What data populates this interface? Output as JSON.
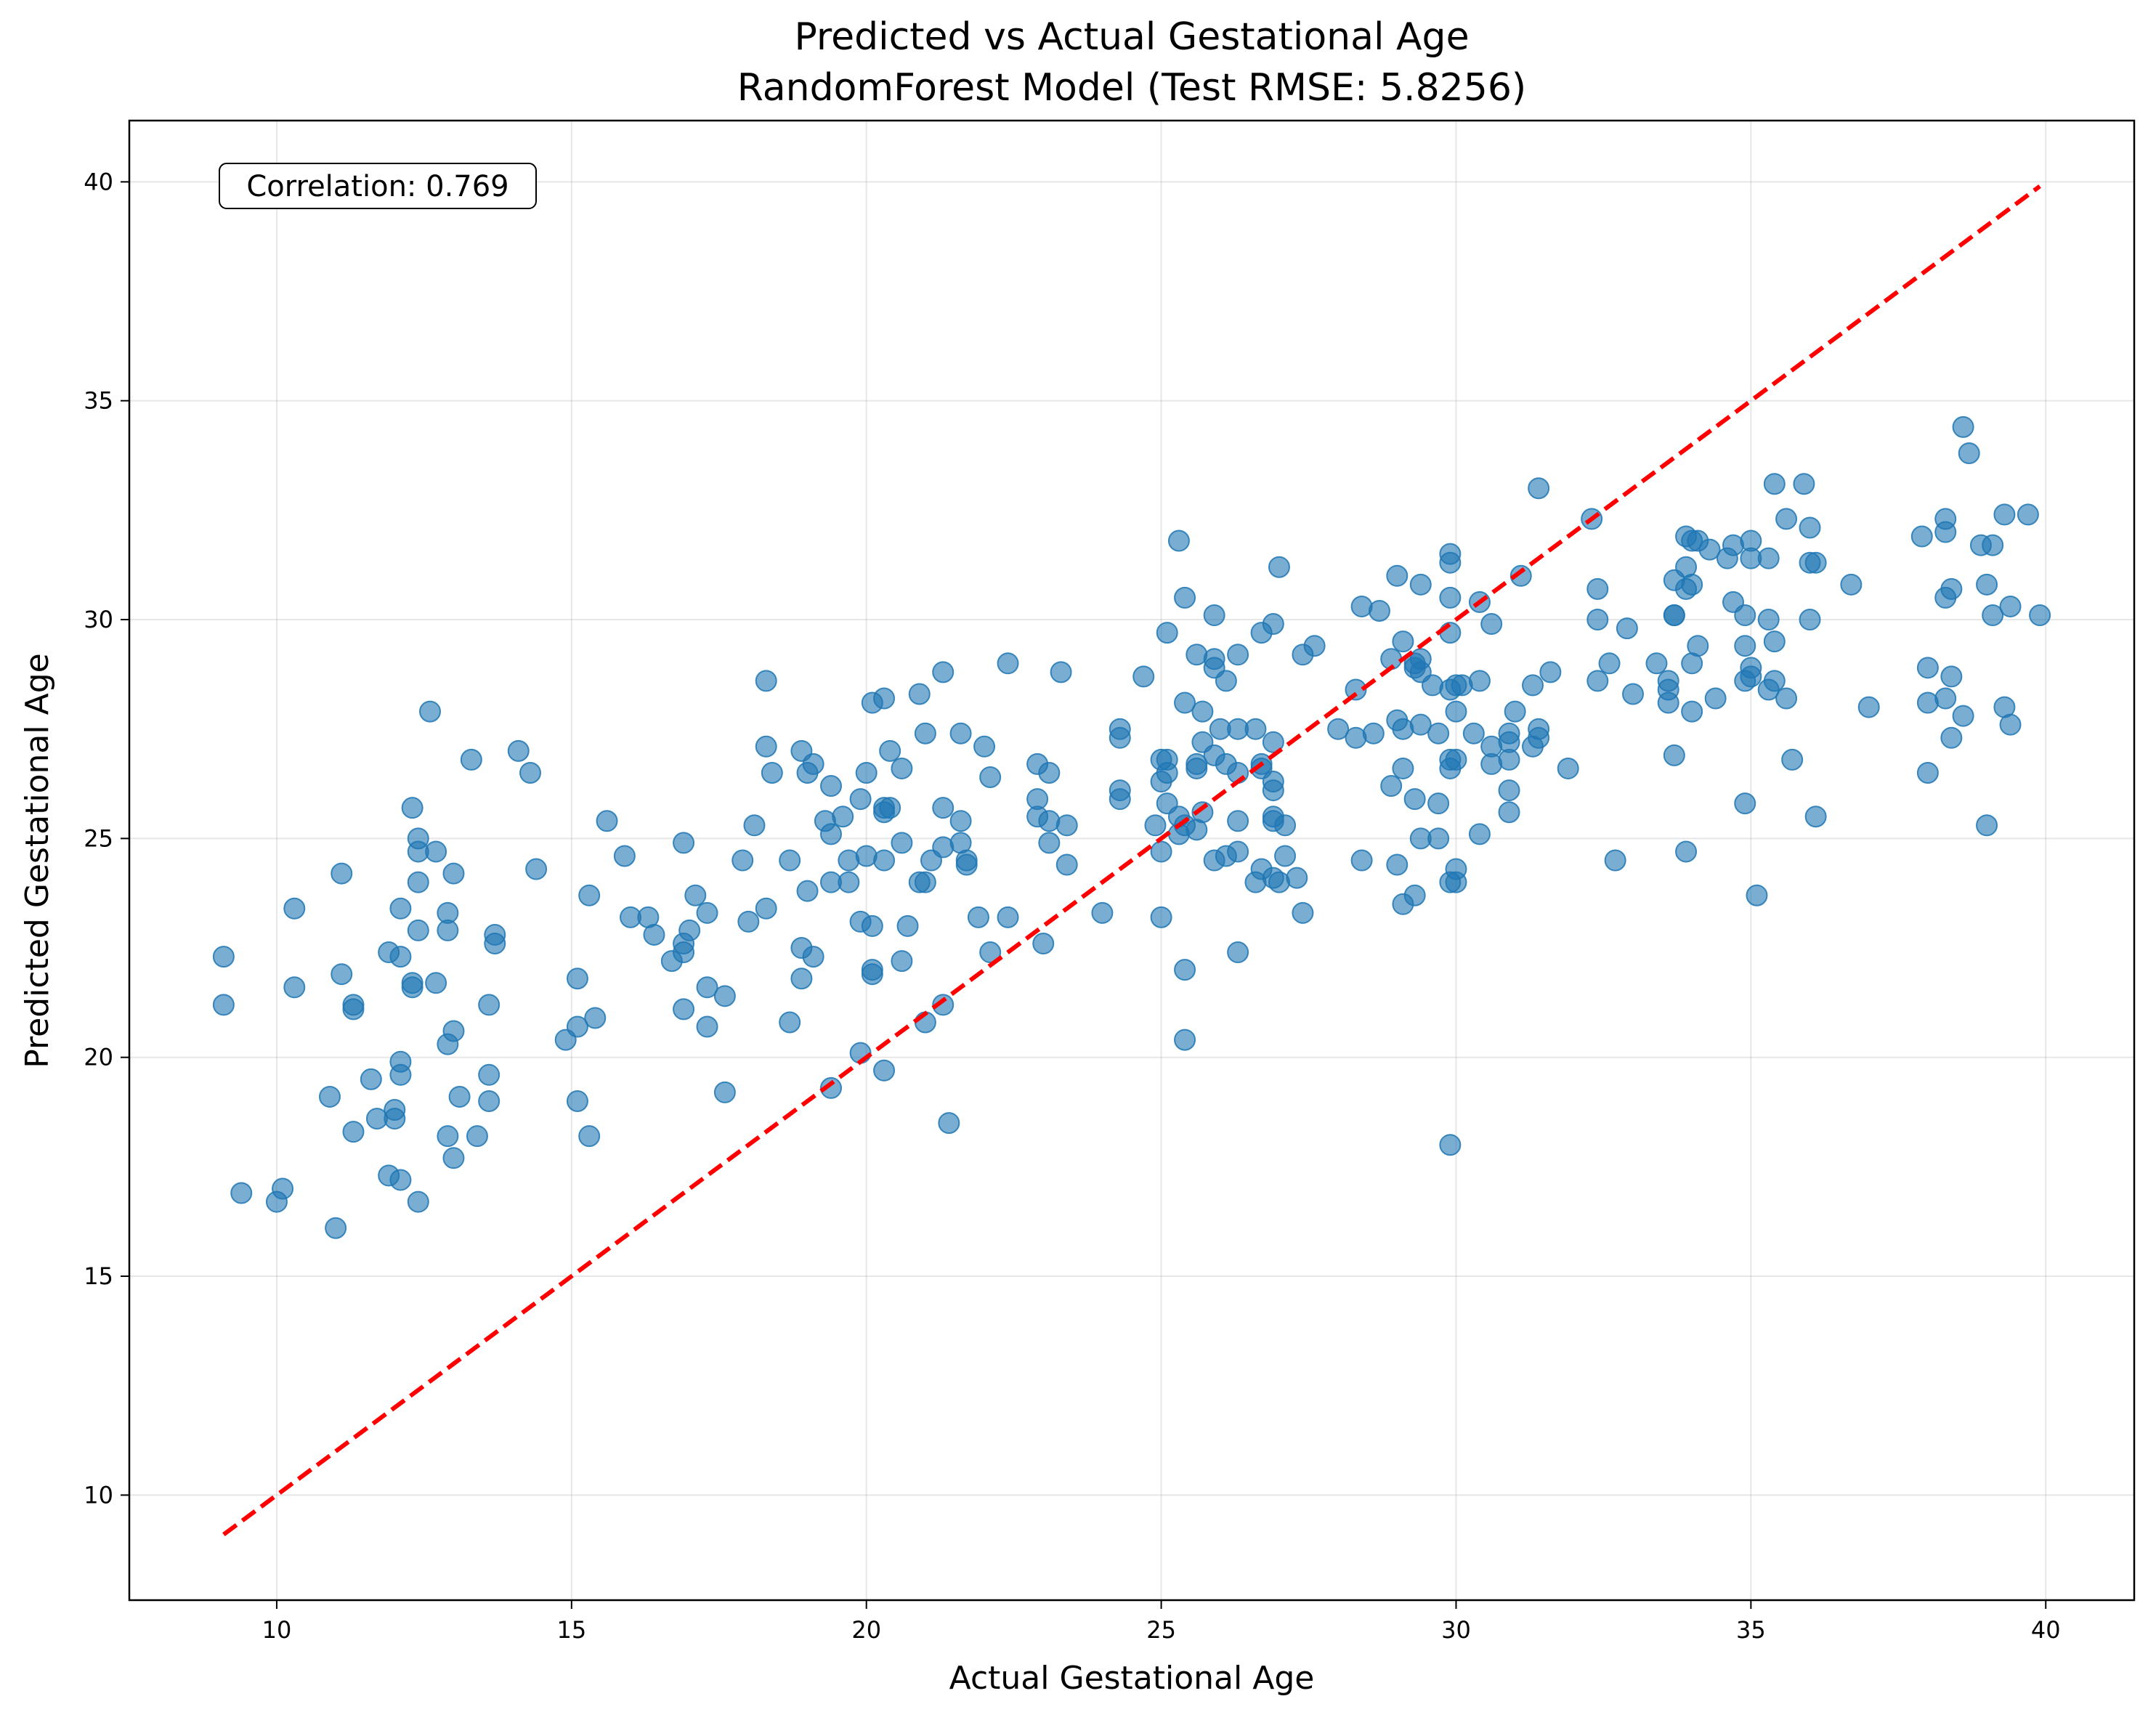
{
  "chart_data": {
    "type": "scatter",
    "title": "Predicted vs Actual Gestational Age",
    "subtitle": "RandomForest Model (Test RMSE: 5.8256)",
    "xlabel": "Actual Gestational Age",
    "ylabel": "Predicted Gestational Age",
    "xlim": [
      7.5,
      41.5
    ],
    "ylim": [
      7.6,
      41.4
    ],
    "xticks": [
      10,
      15,
      20,
      25,
      30,
      35,
      40
    ],
    "yticks": [
      10,
      15,
      20,
      25,
      30,
      35,
      40
    ],
    "grid": true,
    "annotation": "Correlation: 0.769",
    "colors": {
      "points": "#1f77b4",
      "reference_line": "#ff0000"
    },
    "reference_line": {
      "style": "dashed",
      "x": [
        9.1,
        39.9
      ],
      "y": [
        9.1,
        39.9
      ]
    },
    "points": [
      [
        9.1,
        22.3
      ],
      [
        9.1,
        21.2
      ],
      [
        9.4,
        16.9
      ],
      [
        10.0,
        16.7
      ],
      [
        10.1,
        17.0
      ],
      [
        10.3,
        23.4
      ],
      [
        10.3,
        21.6
      ],
      [
        10.9,
        19.1
      ],
      [
        11.0,
        16.1
      ],
      [
        11.1,
        24.2
      ],
      [
        11.1,
        21.9
      ],
      [
        11.3,
        21.2
      ],
      [
        11.3,
        21.1
      ],
      [
        11.3,
        18.3
      ],
      [
        11.6,
        19.5
      ],
      [
        11.7,
        18.6
      ],
      [
        11.9,
        22.4
      ],
      [
        11.9,
        17.3
      ],
      [
        12.0,
        18.8
      ],
      [
        12.0,
        18.6
      ],
      [
        12.1,
        23.4
      ],
      [
        12.1,
        22.3
      ],
      [
        12.1,
        19.9
      ],
      [
        12.1,
        19.6
      ],
      [
        12.1,
        17.2
      ],
      [
        12.3,
        25.7
      ],
      [
        12.3,
        21.7
      ],
      [
        12.3,
        21.6
      ],
      [
        12.4,
        25.0
      ],
      [
        12.4,
        24.7
      ],
      [
        12.4,
        24.0
      ],
      [
        12.4,
        22.9
      ],
      [
        12.4,
        16.7
      ],
      [
        12.6,
        27.9
      ],
      [
        12.7,
        24.7
      ],
      [
        12.7,
        21.7
      ],
      [
        12.9,
        23.3
      ],
      [
        12.9,
        22.9
      ],
      [
        12.9,
        20.3
      ],
      [
        12.9,
        18.2
      ],
      [
        13.0,
        24.2
      ],
      [
        13.0,
        20.6
      ],
      [
        13.0,
        17.7
      ],
      [
        13.1,
        19.1
      ],
      [
        13.3,
        26.8
      ],
      [
        13.4,
        18.2
      ],
      [
        13.6,
        21.2
      ],
      [
        13.6,
        19.6
      ],
      [
        13.6,
        19.0
      ],
      [
        13.7,
        22.8
      ],
      [
        13.7,
        22.6
      ],
      [
        14.1,
        27.0
      ],
      [
        14.3,
        26.5
      ],
      [
        14.4,
        24.3
      ],
      [
        14.9,
        20.4
      ],
      [
        15.1,
        21.8
      ],
      [
        15.1,
        20.7
      ],
      [
        15.1,
        19.0
      ],
      [
        15.3,
        23.7
      ],
      [
        15.3,
        18.2
      ],
      [
        15.4,
        20.9
      ],
      [
        15.6,
        25.4
      ],
      [
        15.9,
        24.6
      ],
      [
        16.0,
        23.2
      ],
      [
        16.3,
        23.2
      ],
      [
        16.4,
        22.8
      ],
      [
        16.7,
        22.2
      ],
      [
        16.9,
        24.9
      ],
      [
        16.9,
        22.6
      ],
      [
        16.9,
        22.4
      ],
      [
        16.9,
        21.1
      ],
      [
        17.0,
        22.9
      ],
      [
        17.1,
        23.7
      ],
      [
        17.3,
        23.3
      ],
      [
        17.3,
        21.6
      ],
      [
        17.3,
        20.7
      ],
      [
        17.6,
        21.4
      ],
      [
        17.6,
        19.2
      ],
      [
        17.9,
        24.5
      ],
      [
        18.0,
        23.1
      ],
      [
        18.1,
        25.3
      ],
      [
        18.3,
        28.6
      ],
      [
        18.3,
        27.1
      ],
      [
        18.3,
        23.4
      ],
      [
        18.4,
        26.5
      ],
      [
        18.7,
        24.5
      ],
      [
        18.7,
        20.8
      ],
      [
        18.9,
        27.0
      ],
      [
        18.9,
        22.5
      ],
      [
        18.9,
        21.8
      ],
      [
        19.0,
        26.5
      ],
      [
        19.0,
        23.8
      ],
      [
        19.1,
        26.7
      ],
      [
        19.1,
        22.3
      ],
      [
        19.3,
        25.4
      ],
      [
        19.4,
        26.2
      ],
      [
        19.4,
        25.1
      ],
      [
        19.4,
        24.0
      ],
      [
        19.4,
        19.3
      ],
      [
        19.6,
        25.5
      ],
      [
        19.7,
        24.5
      ],
      [
        19.7,
        24.0
      ],
      [
        19.9,
        25.9
      ],
      [
        19.9,
        23.1
      ],
      [
        19.9,
        20.1
      ],
      [
        20.0,
        26.5
      ],
      [
        20.0,
        24.6
      ],
      [
        20.1,
        28.1
      ],
      [
        20.1,
        23.0
      ],
      [
        20.1,
        22.0
      ],
      [
        20.1,
        21.9
      ],
      [
        20.3,
        28.2
      ],
      [
        20.3,
        25.7
      ],
      [
        20.3,
        25.6
      ],
      [
        20.3,
        24.5
      ],
      [
        20.3,
        19.7
      ],
      [
        20.4,
        27.0
      ],
      [
        20.4,
        25.7
      ],
      [
        20.6,
        26.6
      ],
      [
        20.6,
        24.9
      ],
      [
        20.6,
        22.2
      ],
      [
        20.7,
        23.0
      ],
      [
        20.9,
        28.3
      ],
      [
        20.9,
        24.0
      ],
      [
        21.0,
        27.4
      ],
      [
        21.0,
        24.0
      ],
      [
        21.0,
        20.8
      ],
      [
        21.1,
        24.5
      ],
      [
        21.3,
        28.8
      ],
      [
        21.3,
        25.7
      ],
      [
        21.3,
        24.8
      ],
      [
        21.3,
        21.2
      ],
      [
        21.4,
        18.5
      ],
      [
        21.6,
        27.4
      ],
      [
        21.6,
        25.4
      ],
      [
        21.6,
        24.9
      ],
      [
        21.7,
        24.5
      ],
      [
        21.7,
        24.4
      ],
      [
        21.9,
        23.2
      ],
      [
        22.0,
        27.1
      ],
      [
        22.1,
        26.4
      ],
      [
        22.1,
        22.4
      ],
      [
        22.4,
        29.0
      ],
      [
        22.4,
        23.2
      ],
      [
        22.9,
        26.7
      ],
      [
        22.9,
        25.9
      ],
      [
        22.9,
        25.5
      ],
      [
        23.0,
        22.6
      ],
      [
        23.1,
        26.5
      ],
      [
        23.1,
        25.4
      ],
      [
        23.1,
        24.9
      ],
      [
        23.3,
        28.8
      ],
      [
        23.4,
        25.3
      ],
      [
        23.4,
        24.4
      ],
      [
        24.0,
        23.3
      ],
      [
        24.3,
        27.5
      ],
      [
        24.3,
        27.3
      ],
      [
        24.3,
        26.1
      ],
      [
        24.3,
        25.9
      ],
      [
        24.7,
        28.7
      ],
      [
        24.9,
        25.3
      ],
      [
        25.0,
        26.8
      ],
      [
        25.0,
        26.3
      ],
      [
        25.0,
        24.7
      ],
      [
        25.0,
        23.2
      ],
      [
        25.1,
        29.7
      ],
      [
        25.1,
        26.8
      ],
      [
        25.1,
        26.5
      ],
      [
        25.1,
        25.8
      ],
      [
        25.3,
        31.8
      ],
      [
        25.3,
        25.5
      ],
      [
        25.3,
        25.1
      ],
      [
        25.4,
        30.5
      ],
      [
        25.4,
        28.1
      ],
      [
        25.4,
        25.3
      ],
      [
        25.4,
        22.0
      ],
      [
        25.4,
        20.4
      ],
      [
        25.6,
        29.2
      ],
      [
        25.6,
        26.7
      ],
      [
        25.6,
        26.6
      ],
      [
        25.6,
        25.2
      ],
      [
        25.7,
        27.9
      ],
      [
        25.7,
        27.2
      ],
      [
        25.7,
        25.6
      ],
      [
        25.9,
        30.1
      ],
      [
        25.9,
        29.1
      ],
      [
        25.9,
        28.9
      ],
      [
        25.9,
        26.9
      ],
      [
        25.9,
        24.5
      ],
      [
        26.0,
        27.5
      ],
      [
        26.1,
        28.6
      ],
      [
        26.1,
        26.7
      ],
      [
        26.1,
        24.6
      ],
      [
        26.3,
        29.2
      ],
      [
        26.3,
        27.5
      ],
      [
        26.3,
        26.5
      ],
      [
        26.3,
        25.4
      ],
      [
        26.3,
        24.7
      ],
      [
        26.3,
        22.4
      ],
      [
        26.6,
        27.5
      ],
      [
        26.6,
        24.0
      ],
      [
        26.7,
        29.7
      ],
      [
        26.7,
        26.7
      ],
      [
        26.7,
        26.6
      ],
      [
        26.7,
        24.3
      ],
      [
        26.9,
        29.9
      ],
      [
        26.9,
        27.2
      ],
      [
        26.9,
        26.3
      ],
      [
        26.9,
        26.1
      ],
      [
        26.9,
        25.5
      ],
      [
        26.9,
        25.4
      ],
      [
        26.9,
        24.1
      ],
      [
        27.0,
        31.2
      ],
      [
        27.0,
        24.0
      ],
      [
        27.1,
        25.3
      ],
      [
        27.1,
        24.6
      ],
      [
        27.3,
        24.1
      ],
      [
        27.4,
        29.2
      ],
      [
        27.4,
        23.3
      ],
      [
        27.6,
        29.4
      ],
      [
        28.0,
        27.5
      ],
      [
        28.3,
        28.4
      ],
      [
        28.3,
        27.3
      ],
      [
        28.4,
        30.3
      ],
      [
        28.4,
        24.5
      ],
      [
        28.6,
        27.4
      ],
      [
        28.7,
        30.2
      ],
      [
        28.9,
        29.1
      ],
      [
        28.9,
        26.2
      ],
      [
        29.0,
        31.0
      ],
      [
        29.0,
        27.7
      ],
      [
        29.0,
        24.4
      ],
      [
        29.1,
        29.5
      ],
      [
        29.1,
        27.5
      ],
      [
        29.1,
        26.6
      ],
      [
        29.1,
        23.5
      ],
      [
        29.3,
        29.0
      ],
      [
        29.3,
        28.9
      ],
      [
        29.3,
        25.9
      ],
      [
        29.3,
        23.7
      ],
      [
        29.4,
        30.8
      ],
      [
        29.4,
        29.1
      ],
      [
        29.4,
        28.8
      ],
      [
        29.4,
        27.6
      ],
      [
        29.4,
        25.0
      ],
      [
        29.6,
        28.5
      ],
      [
        29.7,
        27.4
      ],
      [
        29.7,
        25.8
      ],
      [
        29.7,
        25.0
      ],
      [
        29.9,
        31.5
      ],
      [
        29.9,
        31.3
      ],
      [
        29.9,
        30.5
      ],
      [
        29.9,
        29.7
      ],
      [
        29.9,
        28.4
      ],
      [
        29.9,
        26.8
      ],
      [
        29.9,
        26.6
      ],
      [
        29.9,
        24.0
      ],
      [
        29.9,
        18.0
      ],
      [
        30.0,
        28.5
      ],
      [
        30.0,
        27.9
      ],
      [
        30.0,
        26.8
      ],
      [
        30.0,
        24.3
      ],
      [
        30.0,
        24.0
      ],
      [
        30.1,
        28.5
      ],
      [
        30.3,
        27.4
      ],
      [
        30.4,
        30.4
      ],
      [
        30.4,
        28.6
      ],
      [
        30.4,
        25.1
      ],
      [
        30.6,
        29.9
      ],
      [
        30.6,
        27.1
      ],
      [
        30.6,
        26.7
      ],
      [
        30.9,
        27.4
      ],
      [
        30.9,
        27.2
      ],
      [
        30.9,
        26.8
      ],
      [
        30.9,
        26.1
      ],
      [
        30.9,
        25.6
      ],
      [
        31.0,
        27.9
      ],
      [
        31.1,
        31.0
      ],
      [
        31.3,
        28.5
      ],
      [
        31.3,
        27.1
      ],
      [
        31.4,
        33.0
      ],
      [
        31.4,
        27.5
      ],
      [
        31.4,
        27.3
      ],
      [
        31.6,
        28.8
      ],
      [
        31.9,
        26.6
      ],
      [
        32.3,
        32.3
      ],
      [
        32.4,
        30.7
      ],
      [
        32.4,
        30.0
      ],
      [
        32.4,
        28.6
      ],
      [
        32.6,
        29.0
      ],
      [
        32.7,
        24.5
      ],
      [
        32.9,
        29.8
      ],
      [
        33.0,
        28.3
      ],
      [
        33.4,
        29.0
      ],
      [
        33.6,
        28.6
      ],
      [
        33.6,
        28.4
      ],
      [
        33.6,
        28.1
      ],
      [
        33.7,
        30.9
      ],
      [
        33.7,
        30.1
      ],
      [
        33.7,
        30.1
      ],
      [
        33.7,
        26.9
      ],
      [
        33.9,
        31.9
      ],
      [
        33.9,
        31.2
      ],
      [
        33.9,
        30.7
      ],
      [
        33.9,
        24.7
      ],
      [
        34.0,
        31.8
      ],
      [
        34.0,
        30.8
      ],
      [
        34.0,
        29.0
      ],
      [
        34.0,
        27.9
      ],
      [
        34.1,
        31.8
      ],
      [
        34.1,
        29.4
      ],
      [
        34.3,
        31.6
      ],
      [
        34.4,
        28.2
      ],
      [
        34.6,
        31.4
      ],
      [
        34.7,
        31.7
      ],
      [
        34.7,
        30.4
      ],
      [
        34.9,
        30.1
      ],
      [
        34.9,
        29.4
      ],
      [
        34.9,
        28.6
      ],
      [
        34.9,
        25.8
      ],
      [
        35.0,
        31.8
      ],
      [
        35.0,
        31.4
      ],
      [
        35.0,
        28.9
      ],
      [
        35.0,
        28.7
      ],
      [
        35.1,
        23.7
      ],
      [
        35.3,
        31.4
      ],
      [
        35.3,
        30.0
      ],
      [
        35.3,
        28.4
      ],
      [
        35.4,
        33.1
      ],
      [
        35.4,
        29.5
      ],
      [
        35.4,
        28.6
      ],
      [
        35.6,
        32.3
      ],
      [
        35.6,
        28.2
      ],
      [
        35.7,
        26.8
      ],
      [
        35.9,
        33.1
      ],
      [
        36.0,
        32.1
      ],
      [
        36.0,
        31.3
      ],
      [
        36.0,
        30.0
      ],
      [
        36.1,
        31.3
      ],
      [
        36.1,
        25.5
      ],
      [
        36.7,
        30.8
      ],
      [
        37.0,
        28.0
      ],
      [
        37.9,
        31.9
      ],
      [
        38.0,
        28.9
      ],
      [
        38.0,
        28.1
      ],
      [
        38.0,
        26.5
      ],
      [
        38.3,
        32.3
      ],
      [
        38.3,
        32.0
      ],
      [
        38.3,
        30.5
      ],
      [
        38.3,
        28.2
      ],
      [
        38.4,
        30.7
      ],
      [
        38.4,
        28.7
      ],
      [
        38.4,
        27.3
      ],
      [
        38.6,
        34.4
      ],
      [
        38.6,
        27.8
      ],
      [
        38.7,
        33.8
      ],
      [
        38.9,
        31.7
      ],
      [
        39.0,
        30.8
      ],
      [
        39.0,
        25.3
      ],
      [
        39.1,
        31.7
      ],
      [
        39.1,
        30.1
      ],
      [
        39.3,
        32.4
      ],
      [
        39.3,
        28.0
      ],
      [
        39.4,
        30.3
      ],
      [
        39.4,
        27.6
      ],
      [
        39.7,
        32.4
      ],
      [
        39.9,
        30.1
      ]
    ]
  }
}
